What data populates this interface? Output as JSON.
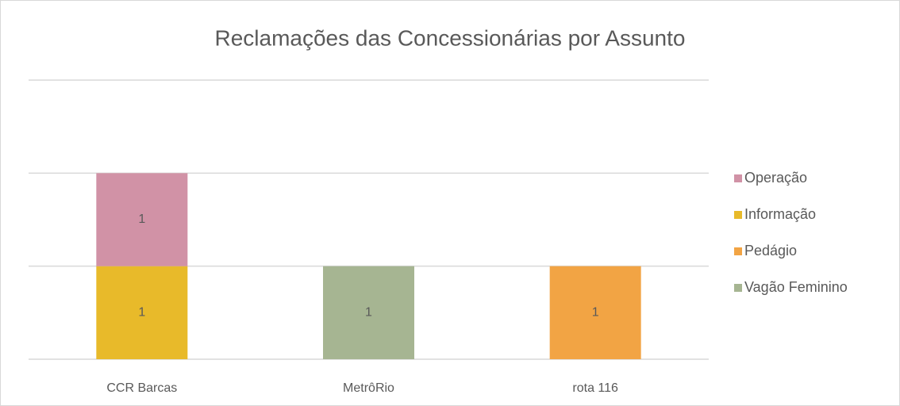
{
  "chart_data": {
    "type": "bar",
    "stacked": true,
    "title": "Reclamações das Concessionárias por Assunto",
    "categories": [
      "CCR Barcas",
      "MetrôRio",
      "rota 116"
    ],
    "series": [
      {
        "name": "Vagão Feminino",
        "color": "#a6b592",
        "values": [
          null,
          1,
          null
        ]
      },
      {
        "name": "Pedágio",
        "color": "#f2a444",
        "values": [
          null,
          null,
          1
        ]
      },
      {
        "name": "Informação",
        "color": "#e8ba2a",
        "values": [
          1,
          null,
          null
        ]
      },
      {
        "name": "Operação",
        "color": "#d192a6",
        "values": [
          1,
          null,
          null
        ]
      }
    ],
    "ylim": [
      0,
      3
    ],
    "yticks": [
      0,
      1,
      2,
      3
    ],
    "grid": true,
    "legend": "right"
  }
}
